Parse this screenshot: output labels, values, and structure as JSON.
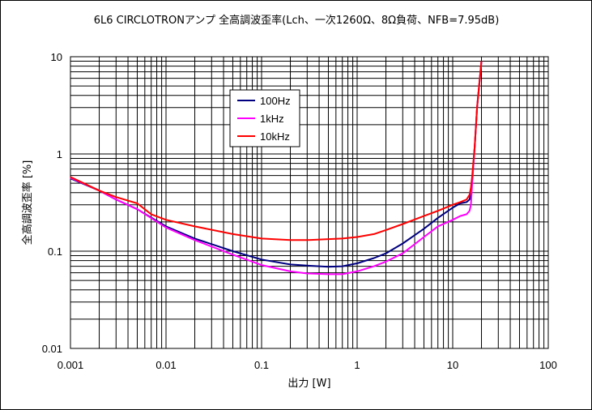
{
  "chart_data": {
    "type": "line",
    "title": "6L6 CIRCLOTRONアンプ 全高調波歪率(Lch、一次1260Ω、8Ω負荷、NFB=7.95dB)",
    "xlabel": "出力 [W]",
    "ylabel": "全高調波歪率 [%]",
    "x_scale": "log",
    "y_scale": "log",
    "xlim": [
      0.001,
      100
    ],
    "ylim": [
      0.01,
      10
    ],
    "x_ticks": [
      "0.001",
      "0.01",
      "0.1",
      "1",
      "10",
      "100"
    ],
    "y_ticks": [
      "10",
      "1",
      "0.1",
      "0.01"
    ],
    "grid": true,
    "legend_position": "upper-left-inside",
    "series": [
      {
        "name": "100Hz",
        "color": "#000080",
        "x": [
          0.001,
          0.002,
          0.003,
          0.005,
          0.01,
          0.02,
          0.05,
          0.1,
          0.2,
          0.3,
          0.5,
          0.7,
          1.0,
          1.5,
          2.0,
          3.0,
          5.0,
          7.0,
          10.0,
          12.0,
          14.0,
          15.0,
          15.5,
          16.0,
          17.0,
          18.0,
          20.0
        ],
        "y": [
          0.56,
          0.42,
          0.34,
          0.27,
          0.18,
          0.135,
          0.1,
          0.082,
          0.073,
          0.071,
          0.069,
          0.07,
          0.075,
          0.085,
          0.095,
          0.12,
          0.17,
          0.22,
          0.28,
          0.31,
          0.32,
          0.34,
          0.4,
          0.55,
          1.2,
          3.0,
          9.0
        ]
      },
      {
        "name": "1kHz",
        "color": "#ff00ff",
        "x": [
          0.001,
          0.002,
          0.003,
          0.005,
          0.01,
          0.02,
          0.05,
          0.1,
          0.2,
          0.3,
          0.5,
          0.7,
          1.0,
          1.5,
          2.0,
          3.0,
          5.0,
          7.0,
          10.0,
          12.0,
          14.0,
          15.0,
          15.5,
          16.0,
          17.0,
          18.0,
          20.0
        ],
        "y": [
          0.57,
          0.42,
          0.34,
          0.27,
          0.175,
          0.13,
          0.092,
          0.072,
          0.062,
          0.059,
          0.058,
          0.058,
          0.062,
          0.07,
          0.078,
          0.095,
          0.14,
          0.18,
          0.21,
          0.23,
          0.24,
          0.26,
          0.3,
          0.5,
          1.2,
          3.0,
          9.0
        ]
      },
      {
        "name": "10kHz",
        "color": "#ff0000",
        "x": [
          0.001,
          0.002,
          0.003,
          0.005,
          0.007,
          0.01,
          0.02,
          0.05,
          0.1,
          0.2,
          0.3,
          0.5,
          0.7,
          1.0,
          1.5,
          2.0,
          3.0,
          5.0,
          7.0,
          10.0,
          12.0,
          14.0,
          15.0,
          15.5,
          16.0,
          17.0,
          18.0,
          20.0
        ],
        "y": [
          0.58,
          0.42,
          0.36,
          0.31,
          0.24,
          0.21,
          0.18,
          0.15,
          0.135,
          0.13,
          0.13,
          0.133,
          0.135,
          0.14,
          0.15,
          0.165,
          0.19,
          0.23,
          0.26,
          0.3,
          0.32,
          0.34,
          0.38,
          0.45,
          0.6,
          1.2,
          3.0,
          9.0
        ]
      }
    ]
  }
}
